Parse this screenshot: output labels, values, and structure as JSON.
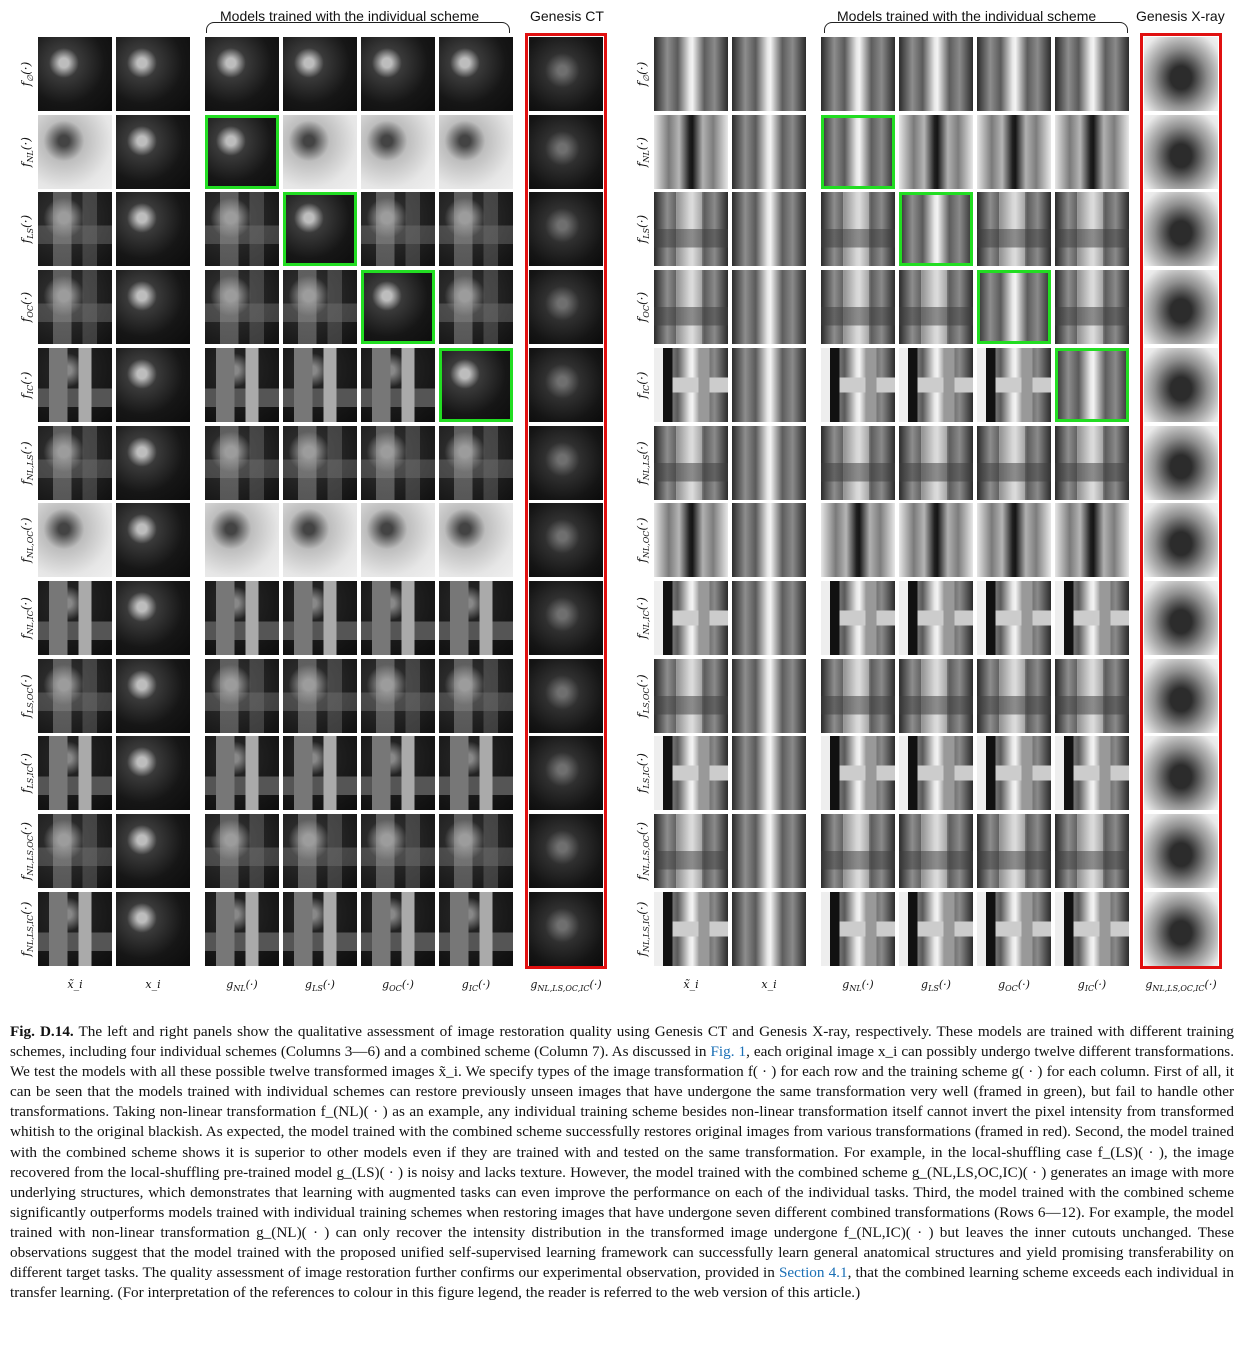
{
  "panels": [
    {
      "id": "left",
      "brace_label": "Models trained with the individual scheme",
      "genesis_label": "Genesis CT",
      "modality": "ct"
    },
    {
      "id": "right",
      "brace_label": "Models trained with the individual scheme",
      "genesis_label": "Genesis X-ray",
      "modality": "xray"
    }
  ],
  "row_labels": [
    "f_∅(·)",
    "f_{NL}(·)",
    "f_{LS}(·)",
    "f_{OC}(·)",
    "f_{IC}(·)",
    "f_{NL,LS}(·)",
    "f_{NL,OC}(·)",
    "f_{NL,IC}(·)",
    "f_{LS,OC}(·)",
    "f_{LS,IC}(·)",
    "f_{NL,LS,OC}(·)",
    "f_{NL,LS,IC}(·)"
  ],
  "column_labels": [
    "x̃_i",
    "x_i",
    "g_{NL}(·)",
    "g_{LS}(·)",
    "g_{OC}(·)",
    "g_{IC}(·)",
    "g_{NL,LS,OC,IC}(·)"
  ],
  "caption": {
    "figure_id": "Fig. D.14.",
    "segments": [
      {
        "text": " The left and right panels show the qualitative assessment of image restoration quality using Genesis CT and Genesis X-ray, respectively. These models are trained with different training schemes, including four individual schemes (Columns 3—6) and a combined scheme (Column 7). As discussed in ",
        "ref": false
      },
      {
        "text": "Fig. 1",
        "ref": true
      },
      {
        "text": ", each original image x_i can possibly undergo twelve different transformations. We test the models with all these possible twelve transformed images x̃_i. We specify types of the image transformation f( · ) for each row and the training scheme g( · ) for each column. First of all, it can be seen that the models trained with individual schemes can restore previously unseen images that have undergone the same transformation very well (framed in green), but fail to handle other transformations. Taking non-linear transformation f_(NL)( · ) as an example, any individual training scheme besides non-linear transformation itself cannot invert the pixel intensity from transformed whitish to the original blackish. As expected, the model trained with the combined scheme successfully restores original images from various transformations (framed in red). Second, the model trained with the combined scheme shows it is superior to other models even if they are trained with and tested on the same transformation. For example, in the local-shuffling case f_(LS)( · ), the image recovered from the local-shuffling pre-trained model g_(LS)( · ) is noisy and lacks texture. However, the model trained with the combined scheme g_(NL,LS,OC,IC)( · ) generates an image with more underlying structures, which demonstrates that learning with augmented tasks can even improve the performance on each of the individual tasks. Third, the model trained with the combined scheme significantly outperforms models trained with individual training schemes when restoring images that have undergone seven different combined transformations (Rows 6—12). For example, the model trained with non-linear transformation g_(NL)( · ) can only recover the intensity distribution in the transformed image undergone f_(NL,IC)( · ) but leaves the inner cutouts unchanged. These observations suggest that the model trained with the proposed unified self-supervised learning framework can successfully learn general anatomical structures and yield promising transferability on different target tasks. The quality assessment of image restoration further confirms our experimental observation, provided in ",
        "ref": false
      },
      {
        "text": "Section 4.1",
        "ref": true
      },
      {
        "text": ", that the combined learning scheme exceeds each individual in transfer learning. (For interpretation of the references to colour in this figure legend, the reader is referred to the web version of this article.)",
        "ref": false
      }
    ]
  },
  "colors": {
    "green_frame": "#22dd22",
    "red_frame": "#e01010",
    "link": "#1a6fb5"
  }
}
